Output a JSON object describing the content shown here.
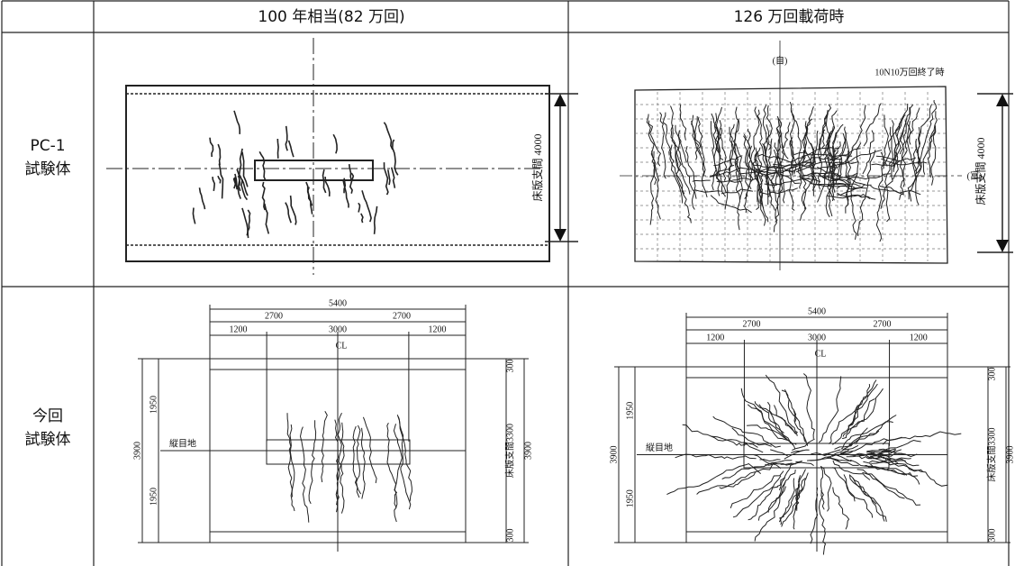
{
  "table": {
    "header": {
      "col1": "100 年相当(82 万回)",
      "col2": "126 万回載荷時"
    },
    "rows": [
      {
        "label": [
          "PC-1",
          "試験体"
        ],
        "left": {
          "span_label": "床版支間 4000"
        },
        "right": {
          "top_mark": "(自)",
          "note": "10N10万回終了時",
          "side_mark": "(富)",
          "span_label": "床版支間 4000"
        }
      },
      {
        "label": [
          "今回",
          "試験体"
        ],
        "dims": {
          "total": "5400",
          "half": "2700",
          "edge": "1200",
          "center": "3000",
          "cl": "CL",
          "margin": "300",
          "half_width": "1950",
          "width": "3900",
          "joint": "縦目地",
          "span": "床版支間3300"
        }
      }
    ]
  }
}
